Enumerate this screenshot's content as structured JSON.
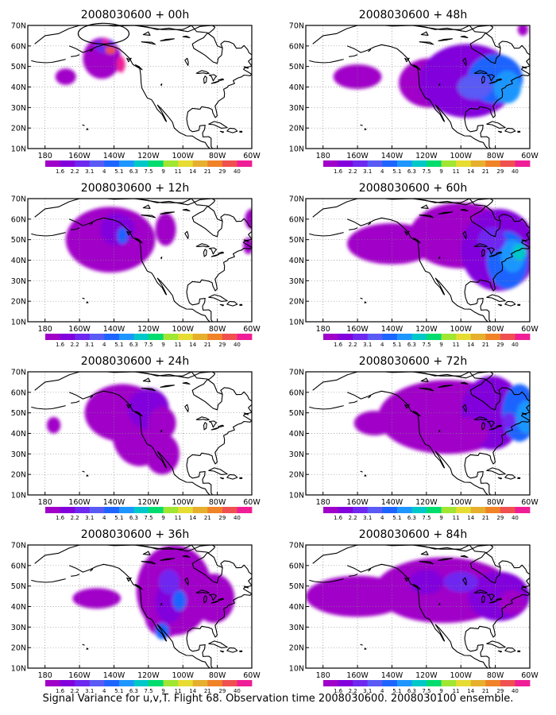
{
  "panels": [
    {
      "title": "2008030600 + 00h"
    },
    {
      "title": "2008030600 + 48h"
    },
    {
      "title": "2008030600 + 12h"
    },
    {
      "title": "2008030600 + 60h"
    },
    {
      "title": "2008030600 + 24h"
    },
    {
      "title": "2008030600 + 72h"
    },
    {
      "title": "2008030600 + 36h"
    },
    {
      "title": "2008030600 + 84h"
    }
  ],
  "lon_labels": [
    "180",
    "160W",
    "140W",
    "120W",
    "100W",
    "80W",
    "60W"
  ],
  "lat_labels": [
    "70N",
    "60N",
    "50N",
    "40N",
    "30N",
    "20N",
    "10N"
  ],
  "colorbar": {
    "labels": [
      "1.6",
      "2.2",
      "3.1",
      "4",
      "5.1",
      "6.3",
      "7.5",
      "9",
      "11",
      "14",
      "21",
      "29",
      "40"
    ],
    "colors": [
      "#a000c8",
      "#8200dc",
      "#6e28f0",
      "#5a5af5",
      "#1e64ff",
      "#1e96ff",
      "#00c8c8",
      "#00dc6e",
      "#a0e632",
      "#e6dc32",
      "#e6af2d",
      "#f08228",
      "#f05050",
      "#f01e96"
    ]
  },
  "footer": "Signal Variance for u,v,T. Flight 68. Observation time 2008030600. 2008030100 ensemble."
}
